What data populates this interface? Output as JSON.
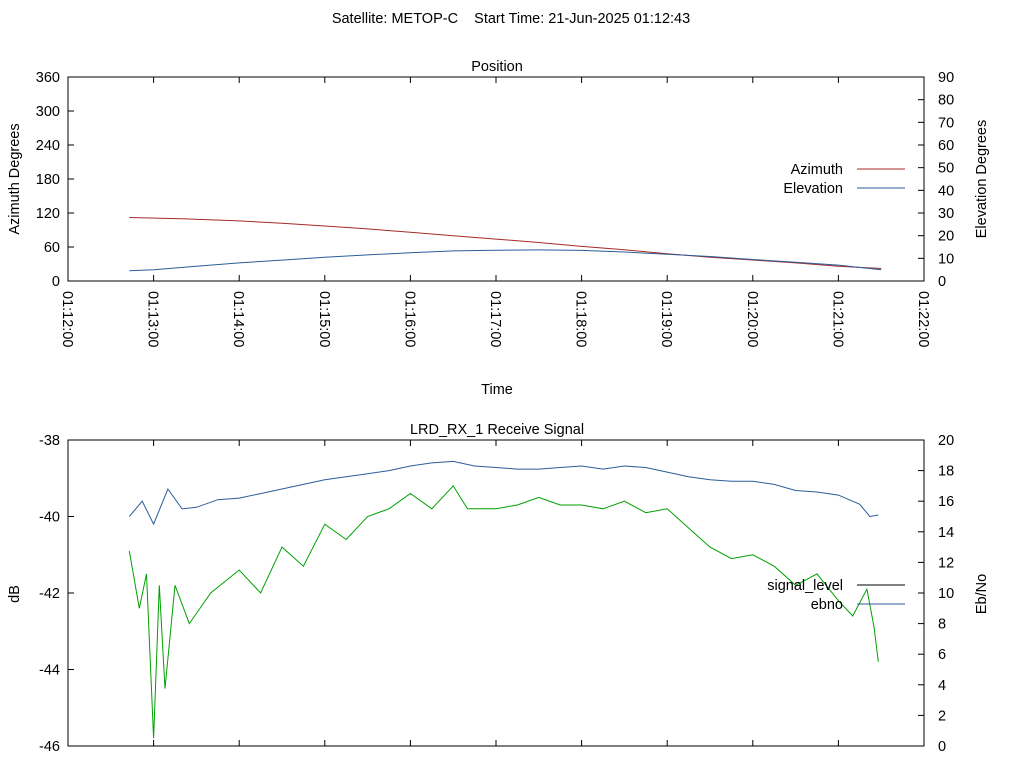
{
  "header": {
    "title": "Satellite: METOP-C    Start Time: 21-Jun-2025 01:12:43"
  },
  "chart_data": [
    {
      "type": "line",
      "title": "Position",
      "xlabel": "Time",
      "ylabel": "Azimuth Degrees",
      "y2label": "Elevation Degrees",
      "xlim": [
        "01:12:00",
        "01:22:00"
      ],
      "ylim": [
        0,
        360
      ],
      "y2lim": [
        0,
        90
      ],
      "xticks": [
        "01:12:00",
        "01:13:00",
        "01:14:00",
        "01:15:00",
        "01:16:00",
        "01:17:00",
        "01:18:00",
        "01:19:00",
        "01:20:00",
        "01:21:00",
        "01:22:00"
      ],
      "yticks": [
        "0",
        "60",
        "120",
        "180",
        "240",
        "300",
        "360"
      ],
      "y2ticks": [
        "0",
        "10",
        "20",
        "30",
        "40",
        "50",
        "60",
        "70",
        "80",
        "90"
      ],
      "legend_position": "right",
      "series": [
        {
          "name": "Azimuth",
          "axis": "y",
          "color": "#a52a2a",
          "points": [
            [
              "01:12:43",
              112
            ],
            [
              "01:13:20",
              110
            ],
            [
              "01:14:00",
              106
            ],
            [
              "01:14:30",
              102
            ],
            [
              "01:15:00",
              97
            ],
            [
              "01:15:30",
              92
            ],
            [
              "01:16:00",
              86
            ],
            [
              "01:16:30",
              80
            ],
            [
              "01:17:00",
              74
            ],
            [
              "01:17:30",
              68
            ],
            [
              "01:18:00",
              61
            ],
            [
              "01:18:30",
              55
            ],
            [
              "01:19:00",
              48
            ],
            [
              "01:19:30",
              42
            ],
            [
              "01:20:00",
              37
            ],
            [
              "01:20:30",
              32
            ],
            [
              "01:21:00",
              26
            ],
            [
              "01:21:30",
              22
            ]
          ]
        },
        {
          "name": "Elevation",
          "axis": "y2",
          "color": "#2b5d9a",
          "points": [
            [
              "01:12:43",
              4.5
            ],
            [
              "01:13:00",
              5
            ],
            [
              "01:13:30",
              6.5
            ],
            [
              "01:14:00",
              8
            ],
            [
              "01:14:30",
              9.2
            ],
            [
              "01:15:00",
              10.5
            ],
            [
              "01:15:30",
              11.5
            ],
            [
              "01:16:00",
              12.5
            ],
            [
              "01:16:30",
              13.3
            ],
            [
              "01:17:00",
              13.6
            ],
            [
              "01:17:30",
              13.7
            ],
            [
              "01:18:00",
              13.5
            ],
            [
              "01:18:30",
              12.8
            ],
            [
              "01:19:00",
              11.8
            ],
            [
              "01:19:30",
              10.8
            ],
            [
              "01:20:00",
              9.5
            ],
            [
              "01:20:30",
              8.3
            ],
            [
              "01:21:00",
              7
            ],
            [
              "01:21:30",
              5
            ]
          ]
        }
      ]
    },
    {
      "type": "line",
      "title": "LRD_RX_1 Receive Signal",
      "xlabel": "",
      "ylabel": "dB",
      "y2label": "Eb/No",
      "xlim": [
        "01:12:00",
        "01:22:00"
      ],
      "ylim": [
        -46,
        -38
      ],
      "y2lim": [
        0,
        20
      ],
      "yticks": [
        "-46",
        "-44",
        "-42",
        "-40",
        "-38"
      ],
      "y2ticks": [
        "0",
        "2",
        "4",
        "6",
        "8",
        "10",
        "12",
        "14",
        "16",
        "18",
        "20"
      ],
      "legend_position": "right",
      "series": [
        {
          "name": "signal_level",
          "axis": "y",
          "color": "#00a000",
          "points": [
            [
              "01:12:43",
              -40.9
            ],
            [
              "01:12:50",
              -42.4
            ],
            [
              "01:12:55",
              -41.5
            ],
            [
              "01:13:00",
              -45.8
            ],
            [
              "01:13:04",
              -41.8
            ],
            [
              "01:13:08",
              -44.5
            ],
            [
              "01:13:15",
              -41.8
            ],
            [
              "01:13:25",
              -42.8
            ],
            [
              "01:13:40",
              -42
            ],
            [
              "01:14:00",
              -41.4
            ],
            [
              "01:14:15",
              -42
            ],
            [
              "01:14:30",
              -40.8
            ],
            [
              "01:14:45",
              -41.3
            ],
            [
              "01:15:00",
              -40.2
            ],
            [
              "01:15:15",
              -40.6
            ],
            [
              "01:15:30",
              -40
            ],
            [
              "01:15:45",
              -39.8
            ],
            [
              "01:16:00",
              -39.4
            ],
            [
              "01:16:15",
              -39.8
            ],
            [
              "01:16:30",
              -39.2
            ],
            [
              "01:16:40",
              -39.8
            ],
            [
              "01:17:00",
              -39.8
            ],
            [
              "01:17:15",
              -39.7
            ],
            [
              "01:17:30",
              -39.5
            ],
            [
              "01:17:45",
              -39.7
            ],
            [
              "01:18:00",
              -39.7
            ],
            [
              "01:18:15",
              -39.8
            ],
            [
              "01:18:30",
              -39.6
            ],
            [
              "01:18:45",
              -39.9
            ],
            [
              "01:19:00",
              -39.8
            ],
            [
              "01:19:15",
              -40.3
            ],
            [
              "01:19:30",
              -40.8
            ],
            [
              "01:19:45",
              -41.1
            ],
            [
              "01:20:00",
              -41
            ],
            [
              "01:20:15",
              -41.3
            ],
            [
              "01:20:30",
              -41.8
            ],
            [
              "01:20:45",
              -41.5
            ],
            [
              "01:21:00",
              -42.2
            ],
            [
              "01:21:10",
              -42.6
            ],
            [
              "01:21:20",
              -41.9
            ],
            [
              "01:21:25",
              -42.9
            ],
            [
              "01:21:28",
              -43.8
            ]
          ]
        },
        {
          "name": "ebno",
          "axis": "y2",
          "color": "#2b5d9a",
          "points": [
            [
              "01:12:43",
              15
            ],
            [
              "01:12:52",
              16
            ],
            [
              "01:13:00",
              14.5
            ],
            [
              "01:13:10",
              16.8
            ],
            [
              "01:13:20",
              15.5
            ],
            [
              "01:13:30",
              15.6
            ],
            [
              "01:13:45",
              16.1
            ],
            [
              "01:14:00",
              16.2
            ],
            [
              "01:14:15",
              16.5
            ],
            [
              "01:14:30",
              16.8
            ],
            [
              "01:14:45",
              17.1
            ],
            [
              "01:15:00",
              17.4
            ],
            [
              "01:15:15",
              17.6
            ],
            [
              "01:15:30",
              17.8
            ],
            [
              "01:15:45",
              18
            ],
            [
              "01:16:00",
              18.3
            ],
            [
              "01:16:15",
              18.5
            ],
            [
              "01:16:30",
              18.6
            ],
            [
              "01:16:45",
              18.3
            ],
            [
              "01:17:00",
              18.2
            ],
            [
              "01:17:15",
              18.1
            ],
            [
              "01:17:30",
              18.1
            ],
            [
              "01:17:45",
              18.2
            ],
            [
              "01:18:00",
              18.3
            ],
            [
              "01:18:15",
              18.1
            ],
            [
              "01:18:30",
              18.3
            ],
            [
              "01:18:45",
              18.2
            ],
            [
              "01:19:00",
              17.9
            ],
            [
              "01:19:15",
              17.6
            ],
            [
              "01:19:30",
              17.4
            ],
            [
              "01:19:45",
              17.3
            ],
            [
              "01:20:00",
              17.3
            ],
            [
              "01:20:15",
              17.1
            ],
            [
              "01:20:30",
              16.7
            ],
            [
              "01:20:45",
              16.6
            ],
            [
              "01:21:00",
              16.4
            ],
            [
              "01:21:15",
              15.8
            ],
            [
              "01:21:22",
              15
            ],
            [
              "01:21:28",
              15.1
            ]
          ]
        }
      ]
    }
  ]
}
